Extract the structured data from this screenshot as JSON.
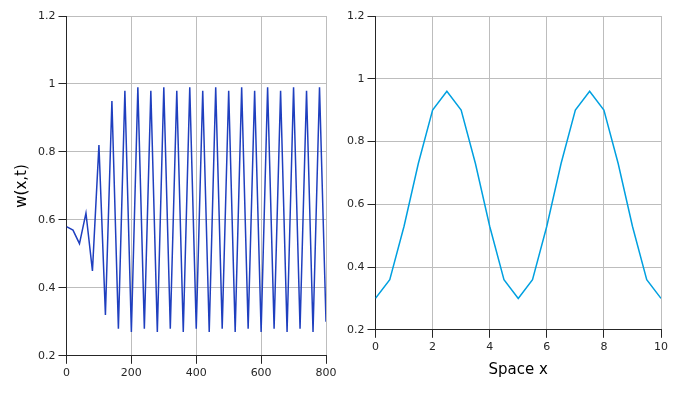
{
  "chart_data": [
    {
      "type": "line",
      "y_label": "w(x,t)",
      "x": [
        0,
        20,
        40,
        60,
        80,
        100,
        120,
        140,
        160,
        180,
        200,
        220,
        240,
        260,
        280,
        300,
        320,
        340,
        360,
        380,
        400,
        420,
        440,
        460,
        480,
        500,
        520,
        540,
        560,
        580,
        600,
        620,
        640,
        660,
        680,
        700,
        720,
        740,
        760,
        780,
        800
      ],
      "values": [
        0.58,
        0.57,
        0.53,
        0.62,
        0.45,
        0.82,
        0.32,
        0.95,
        0.28,
        0.98,
        0.27,
        0.99,
        0.28,
        0.98,
        0.27,
        0.99,
        0.28,
        0.98,
        0.27,
        0.99,
        0.28,
        0.98,
        0.27,
        0.99,
        0.28,
        0.98,
        0.27,
        0.99,
        0.28,
        0.98,
        0.27,
        0.99,
        0.28,
        0.98,
        0.27,
        0.99,
        0.28,
        0.98,
        0.27,
        0.99,
        0.3
      ],
      "color": "#1f3fbf",
      "xlim": [
        0,
        800
      ],
      "xticks": [
        0,
        200,
        400,
        600,
        800
      ],
      "ylim": [
        0.2,
        1.2
      ],
      "yticks": [
        0.2,
        0.4,
        0.6,
        0.8,
        1,
        1.2
      ],
      "grid": true
    },
    {
      "type": "line",
      "x_label": "Space x",
      "x": [
        0,
        0.5,
        1,
        1.5,
        2,
        2.5,
        3,
        3.5,
        4,
        4.5,
        5,
        5.5,
        6,
        6.5,
        7,
        7.5,
        8,
        8.5,
        9,
        9.5,
        10
      ],
      "values": [
        0.3,
        0.36,
        0.53,
        0.73,
        0.9,
        0.96,
        0.9,
        0.73,
        0.53,
        0.36,
        0.3,
        0.36,
        0.53,
        0.73,
        0.9,
        0.96,
        0.9,
        0.73,
        0.53,
        0.36,
        0.3
      ],
      "color": "#00a0e0",
      "xlim": [
        0,
        10
      ],
      "xticks": [
        0,
        2,
        4,
        6,
        8,
        10
      ],
      "ylim": [
        0.2,
        1.2
      ],
      "yticks": [
        0.2,
        0.4,
        0.6,
        0.8,
        1,
        1.2
      ],
      "grid": true
    }
  ]
}
